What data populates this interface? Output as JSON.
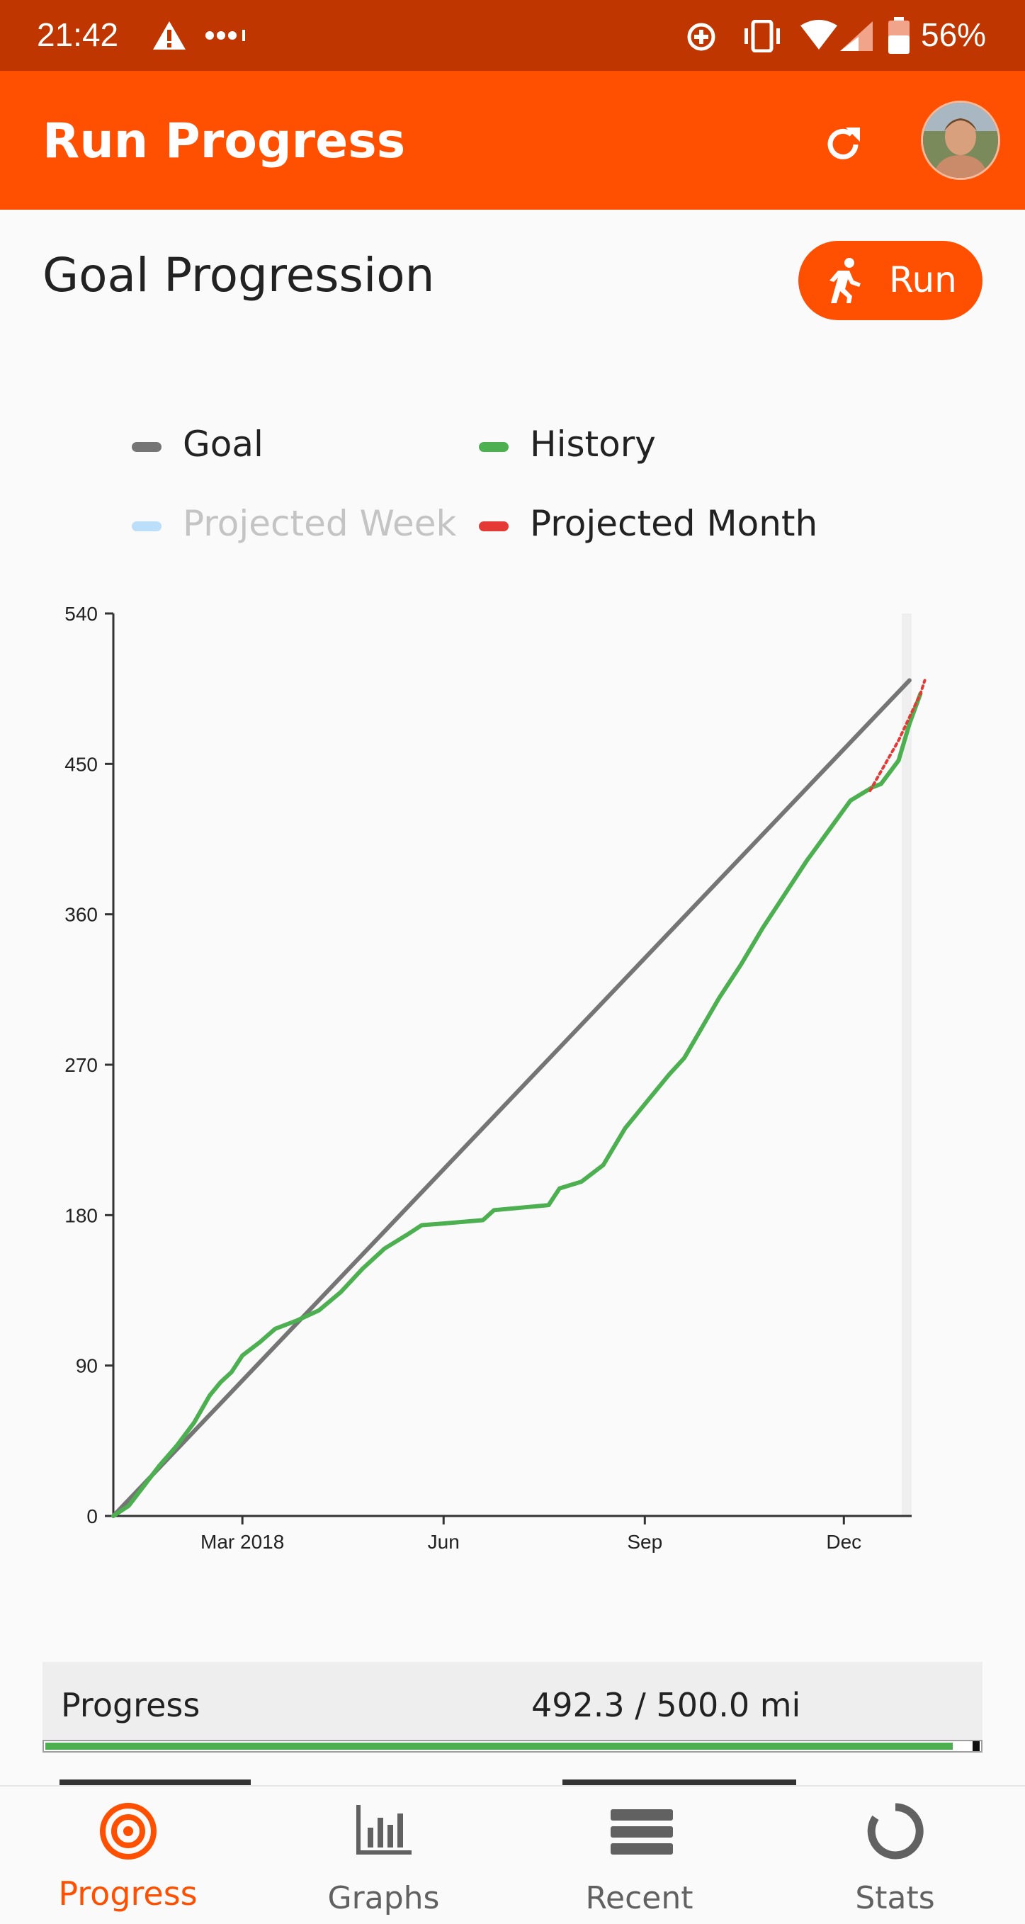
{
  "status_bar": {
    "time": "21:42",
    "battery": "56%"
  },
  "app_bar": {
    "title": "Run Progress"
  },
  "section": {
    "title": "Goal Progression",
    "run_label": "Run"
  },
  "legend": [
    {
      "label": "Goal",
      "color": "#757575",
      "dimmed": false
    },
    {
      "label": "History",
      "color": "#4caf50",
      "dimmed": false
    },
    {
      "label": "Projected Week",
      "color": "#bbdefb",
      "dimmed": true
    },
    {
      "label": "Projected Month",
      "color": "#e53935",
      "dimmed": false
    }
  ],
  "chart_data": {
    "type": "line",
    "x_ticks": [
      "Mar 2018",
      "Jun",
      "Sep",
      "Dec"
    ],
    "y_ticks": [
      "0",
      "90",
      "180",
      "270",
      "360",
      "450",
      "540"
    ],
    "ylim": [
      0,
      540
    ],
    "x_unit": "day of year 2018",
    "xlim": [
      1,
      366
    ],
    "series": [
      {
        "name": "Goal",
        "color": "#757575",
        "points": [
          [
            1,
            0
          ],
          [
            365,
            500
          ]
        ]
      },
      {
        "name": "History",
        "color": "#4caf50",
        "points": [
          [
            1,
            0
          ],
          [
            8,
            6
          ],
          [
            15,
            18
          ],
          [
            22,
            30
          ],
          [
            30,
            42
          ],
          [
            38,
            56
          ],
          [
            45,
            72
          ],
          [
            50,
            80
          ],
          [
            55,
            86
          ],
          [
            60,
            96
          ],
          [
            68,
            104
          ],
          [
            75,
            112
          ],
          [
            85,
            117
          ],
          [
            95,
            123
          ],
          [
            105,
            134
          ],
          [
            115,
            148
          ],
          [
            125,
            160
          ],
          [
            135,
            168
          ],
          [
            142,
            174
          ],
          [
            152,
            175
          ],
          [
            170,
            177
          ],
          [
            175,
            183
          ],
          [
            200,
            186
          ],
          [
            205,
            196
          ],
          [
            215,
            200
          ],
          [
            225,
            210
          ],
          [
            235,
            232
          ],
          [
            245,
            248
          ],
          [
            255,
            264
          ],
          [
            262,
            274
          ],
          [
            270,
            292
          ],
          [
            278,
            310
          ],
          [
            288,
            330
          ],
          [
            298,
            352
          ],
          [
            308,
            372
          ],
          [
            318,
            392
          ],
          [
            328,
            410
          ],
          [
            338,
            428
          ],
          [
            348,
            436
          ],
          [
            352,
            438
          ],
          [
            360,
            452
          ],
          [
            365,
            474
          ],
          [
            370,
            492
          ]
        ]
      },
      {
        "name": "Projected Month",
        "color": "#e53935",
        "points": [
          [
            347,
            434
          ],
          [
            360,
            464
          ],
          [
            370,
            492
          ],
          [
            372,
            500
          ]
        ]
      }
    ]
  },
  "progress": {
    "label": "Progress",
    "value_text": "492.3 / 500.0 mi",
    "fraction": 0.9846
  },
  "bottom_nav": [
    {
      "label": "Progress",
      "icon": "target-icon",
      "active": true
    },
    {
      "label": "Graphs",
      "icon": "bar-chart-icon",
      "active": false
    },
    {
      "label": "Recent",
      "icon": "list-icon",
      "active": false
    },
    {
      "label": "Stats",
      "icon": "ring-icon",
      "active": false
    }
  ],
  "colors": {
    "accent": "#ff4f00",
    "status_bar": "#bf3600",
    "nav_active": "#ff4f00",
    "nav_inactive": "#616161"
  }
}
